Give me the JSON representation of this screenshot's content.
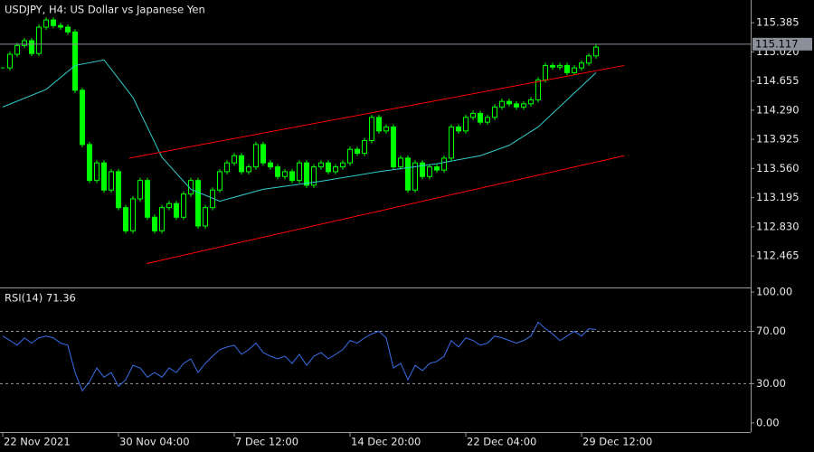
{
  "chart_data": [
    {
      "type": "candlestick",
      "title": "USDJPY, H4:  US Dollar vs Japanese Yen",
      "color": "#00ff00",
      "closes": [
        114.82,
        114.99,
        115.1,
        115.16,
        115.0,
        115.33,
        115.42,
        115.35,
        115.33,
        115.27,
        114.54,
        113.86,
        113.41,
        113.63,
        113.29,
        113.52,
        113.07,
        112.78,
        113.18,
        113.41,
        112.95,
        112.78,
        113.07,
        113.12,
        112.95,
        113.24,
        113.41,
        112.84,
        113.07,
        113.29,
        113.52,
        113.63,
        113.72,
        113.52,
        113.58,
        113.86,
        113.63,
        113.58,
        113.46,
        113.52,
        113.41,
        113.63,
        113.35,
        113.58,
        113.63,
        113.52,
        113.58,
        113.63,
        113.8,
        113.75,
        113.91,
        114.2,
        114.03,
        114.08,
        113.58,
        113.69,
        113.29,
        113.63,
        113.46,
        113.58,
        113.54,
        113.69,
        114.08,
        114.03,
        114.2,
        114.25,
        114.14,
        114.2,
        114.33,
        114.4,
        114.37,
        114.33,
        114.37,
        114.42,
        114.67,
        114.85,
        114.83,
        114.85,
        114.76,
        114.82,
        114.88,
        114.97,
        115.08
      ],
      "xlim": [
        -0.375,
        103.375
      ],
      "xticks": [
        {
          "value": 0,
          "label": "22 Nov 2021"
        },
        {
          "value": 16,
          "label": "30 Nov 04:00"
        },
        {
          "value": 32,
          "label": "7 Dec 12:00"
        },
        {
          "value": 48,
          "label": "14 Dec 20:00"
        },
        {
          "value": 64,
          "label": "22 Dec 04:00"
        },
        {
          "value": 80,
          "label": "29 Dec 12:00"
        }
      ],
      "ylim": [
        112.07,
        115.67
      ],
      "yticks": [
        112.465,
        {
          "value": 112.83,
          "label": "112.830"
        },
        113.195,
        {
          "value": 113.56,
          "label": "113.560"
        },
        113.925,
        {
          "value": 114.29,
          "label": "114.290"
        },
        114.655,
        {
          "value": 115.02,
          "label": "115.020"
        },
        115.385
      ],
      "current_price": {
        "value": 115.117,
        "label": "115.117"
      },
      "moving_average": {
        "color": "#33cccc",
        "x": [
          0,
          6,
          10,
          14,
          18,
          22,
          26,
          30,
          36,
          44,
          52,
          60,
          66,
          70,
          74,
          78,
          82
        ],
        "values": [
          114.33,
          114.55,
          114.85,
          114.92,
          114.45,
          113.7,
          113.3,
          113.15,
          113.3,
          113.4,
          113.52,
          113.62,
          113.72,
          113.85,
          114.08,
          114.42,
          114.76
        ]
      },
      "trendlines": [
        {
          "color": "#ff0000",
          "x": [
            17.5,
            85.9
          ],
          "values": [
            113.69,
            114.85
          ]
        },
        {
          "color": "#ff0000",
          "x": [
            19.9,
            85.9
          ],
          "values": [
            112.37,
            113.72
          ]
        }
      ]
    },
    {
      "type": "line",
      "title": "RSI(14) 71.36",
      "color": "#3a6ee8",
      "values": [
        66.4,
        63,
        59.4,
        65,
        61,
        65,
        66.4,
        65,
        61,
        59.4,
        38.5,
        24.5,
        31.5,
        42,
        35,
        38.5,
        28,
        33,
        44,
        42,
        35,
        38.5,
        35,
        42,
        38.5,
        45.5,
        49,
        38.5,
        45.5,
        51,
        56,
        58,
        59.4,
        52.4,
        56,
        61,
        53.8,
        51,
        49,
        51,
        45.5,
        52.4,
        44,
        51,
        53.8,
        49,
        52.4,
        56,
        63,
        61,
        65,
        68,
        70,
        65,
        42,
        45.5,
        33,
        44,
        40,
        45.5,
        47,
        51,
        63,
        58,
        65,
        63,
        59.4,
        61,
        66.4,
        65,
        63,
        61,
        63,
        66.4,
        77,
        72,
        68,
        63,
        66.4,
        70,
        66.4,
        72,
        71.36
      ],
      "xlim": [
        -0.375,
        103.375
      ],
      "ylim": [
        -7,
        103.5
      ],
      "yticks": [
        {
          "value": 0,
          "label": "0.00"
        },
        {
          "value": 30,
          "label": "30.00"
        },
        {
          "value": 70,
          "label": "70.00"
        },
        {
          "value": 100,
          "label": "100.00"
        }
      ],
      "levels": [
        30,
        70
      ]
    }
  ]
}
